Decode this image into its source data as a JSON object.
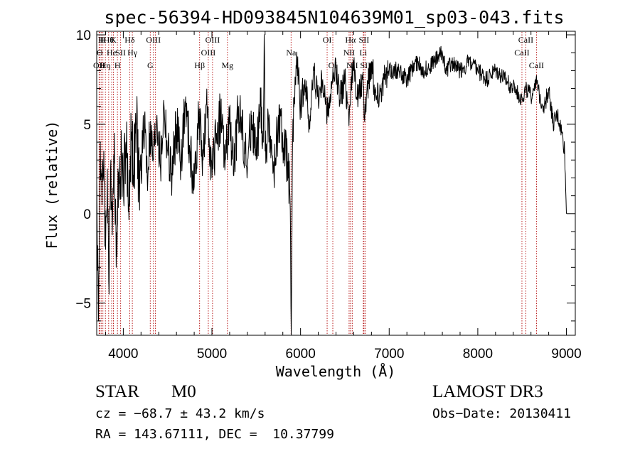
{
  "chart_data": {
    "type": "line",
    "title": "spec-56394-HD093845N104639M01_sp03-043.fits",
    "xlabel": "Wavelength (Å)",
    "ylabel": "Flux (relative)",
    "xlim": [
      3700,
      9100
    ],
    "ylim": [
      -6.8,
      10.2
    ],
    "x_ticks": [
      4000,
      5000,
      6000,
      7000,
      8000,
      9000
    ],
    "x_tick_labels": [
      "4000",
      "5000",
      "6000",
      "7000",
      "8000",
      "9000"
    ],
    "y_ticks": [
      -5,
      0,
      5,
      10
    ],
    "y_tick_labels": [
      "−5",
      "0",
      "5",
      "10"
    ],
    "grid": false,
    "series": [
      {
        "name": "flux",
        "color": "#000000",
        "x": [
          3700,
          3720,
          3740,
          3760,
          3780,
          3800,
          3820,
          3840,
          3860,
          3880,
          3900,
          3920,
          3940,
          3960,
          3980,
          4000,
          4030,
          4060,
          4090,
          4120,
          4150,
          4180,
          4210,
          4240,
          4270,
          4300,
          4340,
          4380,
          4420,
          4460,
          4500,
          4550,
          4600,
          4650,
          4700,
          4750,
          4800,
          4850,
          4900,
          4950,
          5000,
          5050,
          5100,
          5150,
          5200,
          5250,
          5300,
          5350,
          5400,
          5450,
          5500,
          5550,
          5580,
          5590,
          5600,
          5650,
          5700,
          5750,
          5800,
          5850,
          5880,
          5895,
          5900,
          5910,
          5930,
          5960,
          6000,
          6050,
          6100,
          6150,
          6200,
          6250,
          6300,
          6350,
          6400,
          6450,
          6500,
          6550,
          6570,
          6600,
          6650,
          6700,
          6720,
          6750,
          6800,
          6850,
          6900,
          6950,
          7000,
          7100,
          7200,
          7300,
          7400,
          7500,
          7600,
          7650,
          7700,
          7800,
          7900,
          8000,
          8100,
          8200,
          8300,
          8400,
          8500,
          8550,
          8600,
          8650,
          8700,
          8750,
          8800,
          8850,
          8900,
          8950,
          8980,
          9000
        ],
        "y": [
          2.0,
          -6.0,
          4.0,
          0.5,
          3.5,
          -2.0,
          2.5,
          -4.5,
          3.0,
          0.0,
          4.5,
          -3.0,
          2.5,
          1.0,
          3.5,
          2.0,
          4.0,
          0.5,
          4.5,
          2.5,
          5.0,
          1.5,
          3.0,
          5.5,
          2.0,
          4.5,
          3.0,
          5.5,
          2.5,
          6.0,
          3.5,
          2.0,
          5.0,
          3.0,
          6.0,
          3.5,
          1.5,
          5.5,
          3.0,
          6.0,
          2.0,
          4.5,
          5.5,
          3.0,
          5.0,
          2.5,
          6.0,
          4.5,
          2.5,
          5.5,
          3.0,
          6.0,
          4.0,
          10.0,
          3.5,
          5.0,
          2.0,
          5.5,
          4.0,
          3.0,
          1.0,
          -6.8,
          -3.0,
          4.0,
          6.5,
          8.5,
          6.0,
          7.5,
          5.0,
          8.0,
          6.5,
          7.5,
          5.5,
          7.0,
          8.0,
          6.5,
          7.5,
          5.5,
          7.5,
          8.0,
          6.5,
          7.5,
          5.5,
          7.0,
          8.5,
          6.5,
          7.0,
          7.5,
          8.0,
          8.0,
          7.5,
          8.5,
          8.0,
          8.5,
          9.0,
          8.0,
          8.5,
          8.0,
          8.5,
          8.0,
          7.5,
          8.0,
          7.5,
          7.0,
          6.5,
          7.0,
          6.5,
          7.5,
          6.5,
          6.0,
          7.0,
          5.0,
          5.5,
          4.5,
          3.5,
          0.0
        ]
      }
    ],
    "lines": [
      {
        "wavelength": 3727,
        "label": "OII",
        "row": 2
      },
      {
        "wavelength": 3734,
        "label": "O",
        "row": 1
      },
      {
        "wavelength": 3750,
        "label": "H",
        "row": 0
      },
      {
        "wavelength": 3770,
        "label": "H",
        "row": 0
      },
      {
        "wavelength": 3798,
        "label": "Hη",
        "row": 2
      },
      {
        "wavelength": 3835,
        "label": "Hθ",
        "row": 0
      },
      {
        "wavelength": 3869,
        "label": "He",
        "row": 1
      },
      {
        "wavelength": 3889,
        "label": "K",
        "row": 0
      },
      {
        "wavelength": 3934,
        "label": "H",
        "row": 2
      },
      {
        "wavelength": 3970,
        "label": "SII",
        "row": 1
      },
      {
        "wavelength": 4072,
        "label": "Hδ",
        "row": 0
      },
      {
        "wavelength": 4102,
        "label": "Hγ",
        "row": 1
      },
      {
        "wavelength": 4304,
        "label": "G",
        "row": 2
      },
      {
        "wavelength": 4340,
        "label": "OIII",
        "row": 0
      },
      {
        "wavelength": 4363,
        "label": "",
        "row": 0
      },
      {
        "wavelength": 4861,
        "label": "Hβ",
        "row": 2
      },
      {
        "wavelength": 4959,
        "label": "OIII",
        "row": 1
      },
      {
        "wavelength": 5007,
        "label": "OIII",
        "row": 0
      },
      {
        "wavelength": 5175,
        "label": "Mg",
        "row": 2
      },
      {
        "wavelength": 5893,
        "label": "Na",
        "row": 1
      },
      {
        "wavelength": 6300,
        "label": "OI",
        "row": 0
      },
      {
        "wavelength": 6364,
        "label": "OI",
        "row": 2
      },
      {
        "wavelength": 6548,
        "label": "NII",
        "row": 1
      },
      {
        "wavelength": 6563,
        "label": "Hα",
        "row": 0
      },
      {
        "wavelength": 6583,
        "label": "NII",
        "row": 2
      },
      {
        "wavelength": 6708,
        "label": "Li",
        "row": 1
      },
      {
        "wavelength": 6716,
        "label": "SII",
        "row": 0
      },
      {
        "wavelength": 6731,
        "label": "SII",
        "row": 2
      },
      {
        "wavelength": 8498,
        "label": "CaII",
        "row": 1
      },
      {
        "wavelength": 8542,
        "label": "CaII",
        "row": 0
      },
      {
        "wavelength": 8662,
        "label": "CaII",
        "row": 2
      }
    ]
  },
  "info": {
    "class": "STAR",
    "subclass": "M0",
    "survey": "LAMOST DR3",
    "cz": "cz = −68.7 ± 43.2 km/s",
    "obs_date": "Obs−Date: 20130411",
    "coords": "RA = 143.67111, DEC =  10.37799"
  }
}
